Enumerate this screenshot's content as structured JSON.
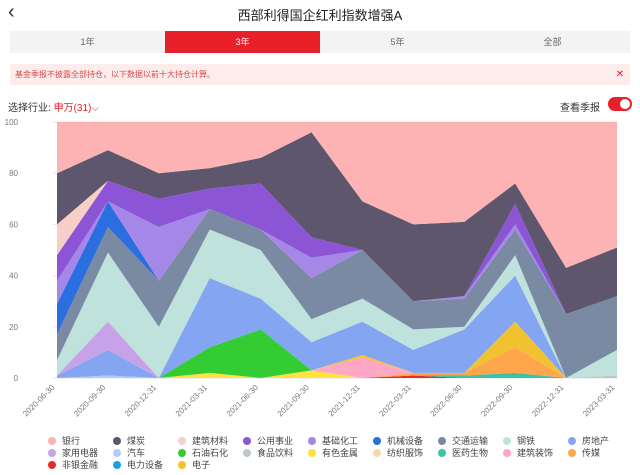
{
  "header": {
    "back_icon": "chevron-left-icon",
    "title": "西部利得国企红利指数增强A"
  },
  "tabs": [
    {
      "label": "1年",
      "active": false
    },
    {
      "label": "3年",
      "active": true
    },
    {
      "label": "5年",
      "active": false
    },
    {
      "label": "全部",
      "active": false
    }
  ],
  "notice": {
    "text": "基金季报不披露全部持仓，以下数据以前十大持仓计算。",
    "close_icon": "close-icon"
  },
  "filter": {
    "label": "选择行业:",
    "value": "申万(31)"
  },
  "season": {
    "label": "查看季报",
    "on": true
  },
  "colors": {
    "银行": "#fdb3b3",
    "煤炭": "#5d566d",
    "建筑材料": "#f7cfc7",
    "公用事业": "#8b55d6",
    "基础化工": "#a487e6",
    "机械设备": "#2a6ee0",
    "交通运输": "#7b8aa3",
    "钢铁": "#bfe2dd",
    "房地产": "#84a6f2",
    "家用电器": "#c8a2e8",
    "汽车": "#b1cdf7",
    "石油石化": "#33cc33",
    "食品饮料": "#bdc5cf",
    "有色金属": "#ffe23d",
    "纺织服饰": "#fbd6ad",
    "医药生物": "#3bc3a8",
    "建筑装饰": "#ffa8c6",
    "传媒": "#ffa54c",
    "非银金融": "#e82b2b",
    "电力设备": "#1ba0e8",
    "电子": "#f2c230"
  },
  "chart_data": {
    "type": "area",
    "stacked": true,
    "x": [
      "2020-06-30",
      "2020-09-30",
      "2020-12-31",
      "2021-03-31",
      "2021-06-30",
      "2021-09-30",
      "2021-12-31",
      "2022-03-31",
      "2022-06-30",
      "2022-09-30",
      "2022-12-31",
      "2023-03-31"
    ],
    "ylim": [
      0,
      100
    ],
    "yticks": [
      0,
      20,
      40,
      60,
      80,
      100
    ],
    "grid": true,
    "legend_position": "bottom",
    "series": [
      {
        "name": "汽车",
        "values": [
          0,
          1,
          0,
          0,
          0,
          0,
          0,
          0,
          0,
          0,
          0,
          0
        ]
      },
      {
        "name": "食品饮料",
        "values": [
          0,
          0,
          0,
          0,
          0,
          0,
          0,
          0,
          0,
          0,
          0,
          1
        ]
      },
      {
        "name": "有色金属",
        "values": [
          0,
          0,
          0,
          2,
          0,
          3,
          0,
          0,
          0,
          0,
          0,
          0
        ]
      },
      {
        "name": "非银金融",
        "values": [
          0,
          0,
          0,
          0,
          0,
          0,
          0,
          1,
          0,
          0,
          0,
          0
        ]
      },
      {
        "name": "医药生物",
        "values": [
          0,
          0,
          0,
          0,
          0,
          0,
          0,
          0,
          1,
          2,
          0,
          0
        ]
      },
      {
        "name": "传媒",
        "values": [
          0,
          0,
          0,
          0,
          0,
          0,
          0,
          1,
          1,
          10,
          0,
          0
        ]
      },
      {
        "name": "建筑装饰",
        "values": [
          0,
          0,
          0,
          0,
          0,
          0,
          8,
          0,
          0,
          0,
          0,
          0
        ]
      },
      {
        "name": "电子",
        "values": [
          0,
          0,
          0,
          0,
          0,
          0,
          1,
          0,
          0,
          10,
          0,
          0
        ]
      },
      {
        "name": "石油石化",
        "values": [
          0,
          0,
          0,
          10,
          19,
          0,
          0,
          0,
          0,
          0,
          0,
          0
        ]
      },
      {
        "name": "房地产",
        "values": [
          1,
          10,
          0,
          27,
          12,
          11,
          13,
          9,
          17,
          18,
          0,
          0
        ]
      },
      {
        "name": "家用电器",
        "values": [
          0,
          11,
          0,
          0,
          0,
          0,
          0,
          0,
          0,
          0,
          0,
          0
        ]
      },
      {
        "name": "钢铁",
        "values": [
          6,
          27,
          20,
          19,
          19,
          9,
          9,
          8,
          1,
          8,
          0,
          10
        ]
      },
      {
        "name": "交通运输",
        "values": [
          10,
          10,
          18,
          8,
          8,
          16,
          19,
          11,
          11,
          10,
          25,
          21
        ]
      },
      {
        "name": "机械设备",
        "values": [
          12,
          10,
          0,
          0,
          0,
          0,
          0,
          0,
          0,
          0,
          0,
          0
        ]
      },
      {
        "name": "基础化工",
        "values": [
          9,
          0,
          21,
          0,
          0,
          8,
          0,
          0,
          1,
          2,
          0,
          0
        ]
      },
      {
        "name": "公用事业",
        "values": [
          10,
          8,
          11,
          8,
          18,
          8,
          0,
          0,
          0,
          8,
          0,
          0
        ]
      },
      {
        "name": "建筑材料",
        "values": [
          12,
          0,
          0,
          0,
          0,
          0,
          0,
          0,
          0,
          0,
          0,
          0
        ]
      },
      {
        "name": "煤炭",
        "values": [
          20,
          12,
          10,
          8,
          10,
          41,
          19,
          30,
          29,
          8,
          18,
          19
        ]
      },
      {
        "name": "银行",
        "values": [
          20,
          11,
          20,
          18,
          14,
          4,
          31,
          40,
          39,
          24,
          57,
          49
        ]
      }
    ]
  },
  "legend": [
    "银行",
    "煤炭",
    "建筑材料",
    "公用事业",
    "基础化工",
    "机械设备",
    "交通运输",
    "钢铁",
    "房地产",
    "家用电器",
    "汽车",
    "石油石化",
    "食品饮料",
    "有色金属",
    "纺织服饰",
    "医药生物",
    "建筑装饰",
    "传媒",
    "非银金融",
    "电力设备",
    "电子"
  ]
}
